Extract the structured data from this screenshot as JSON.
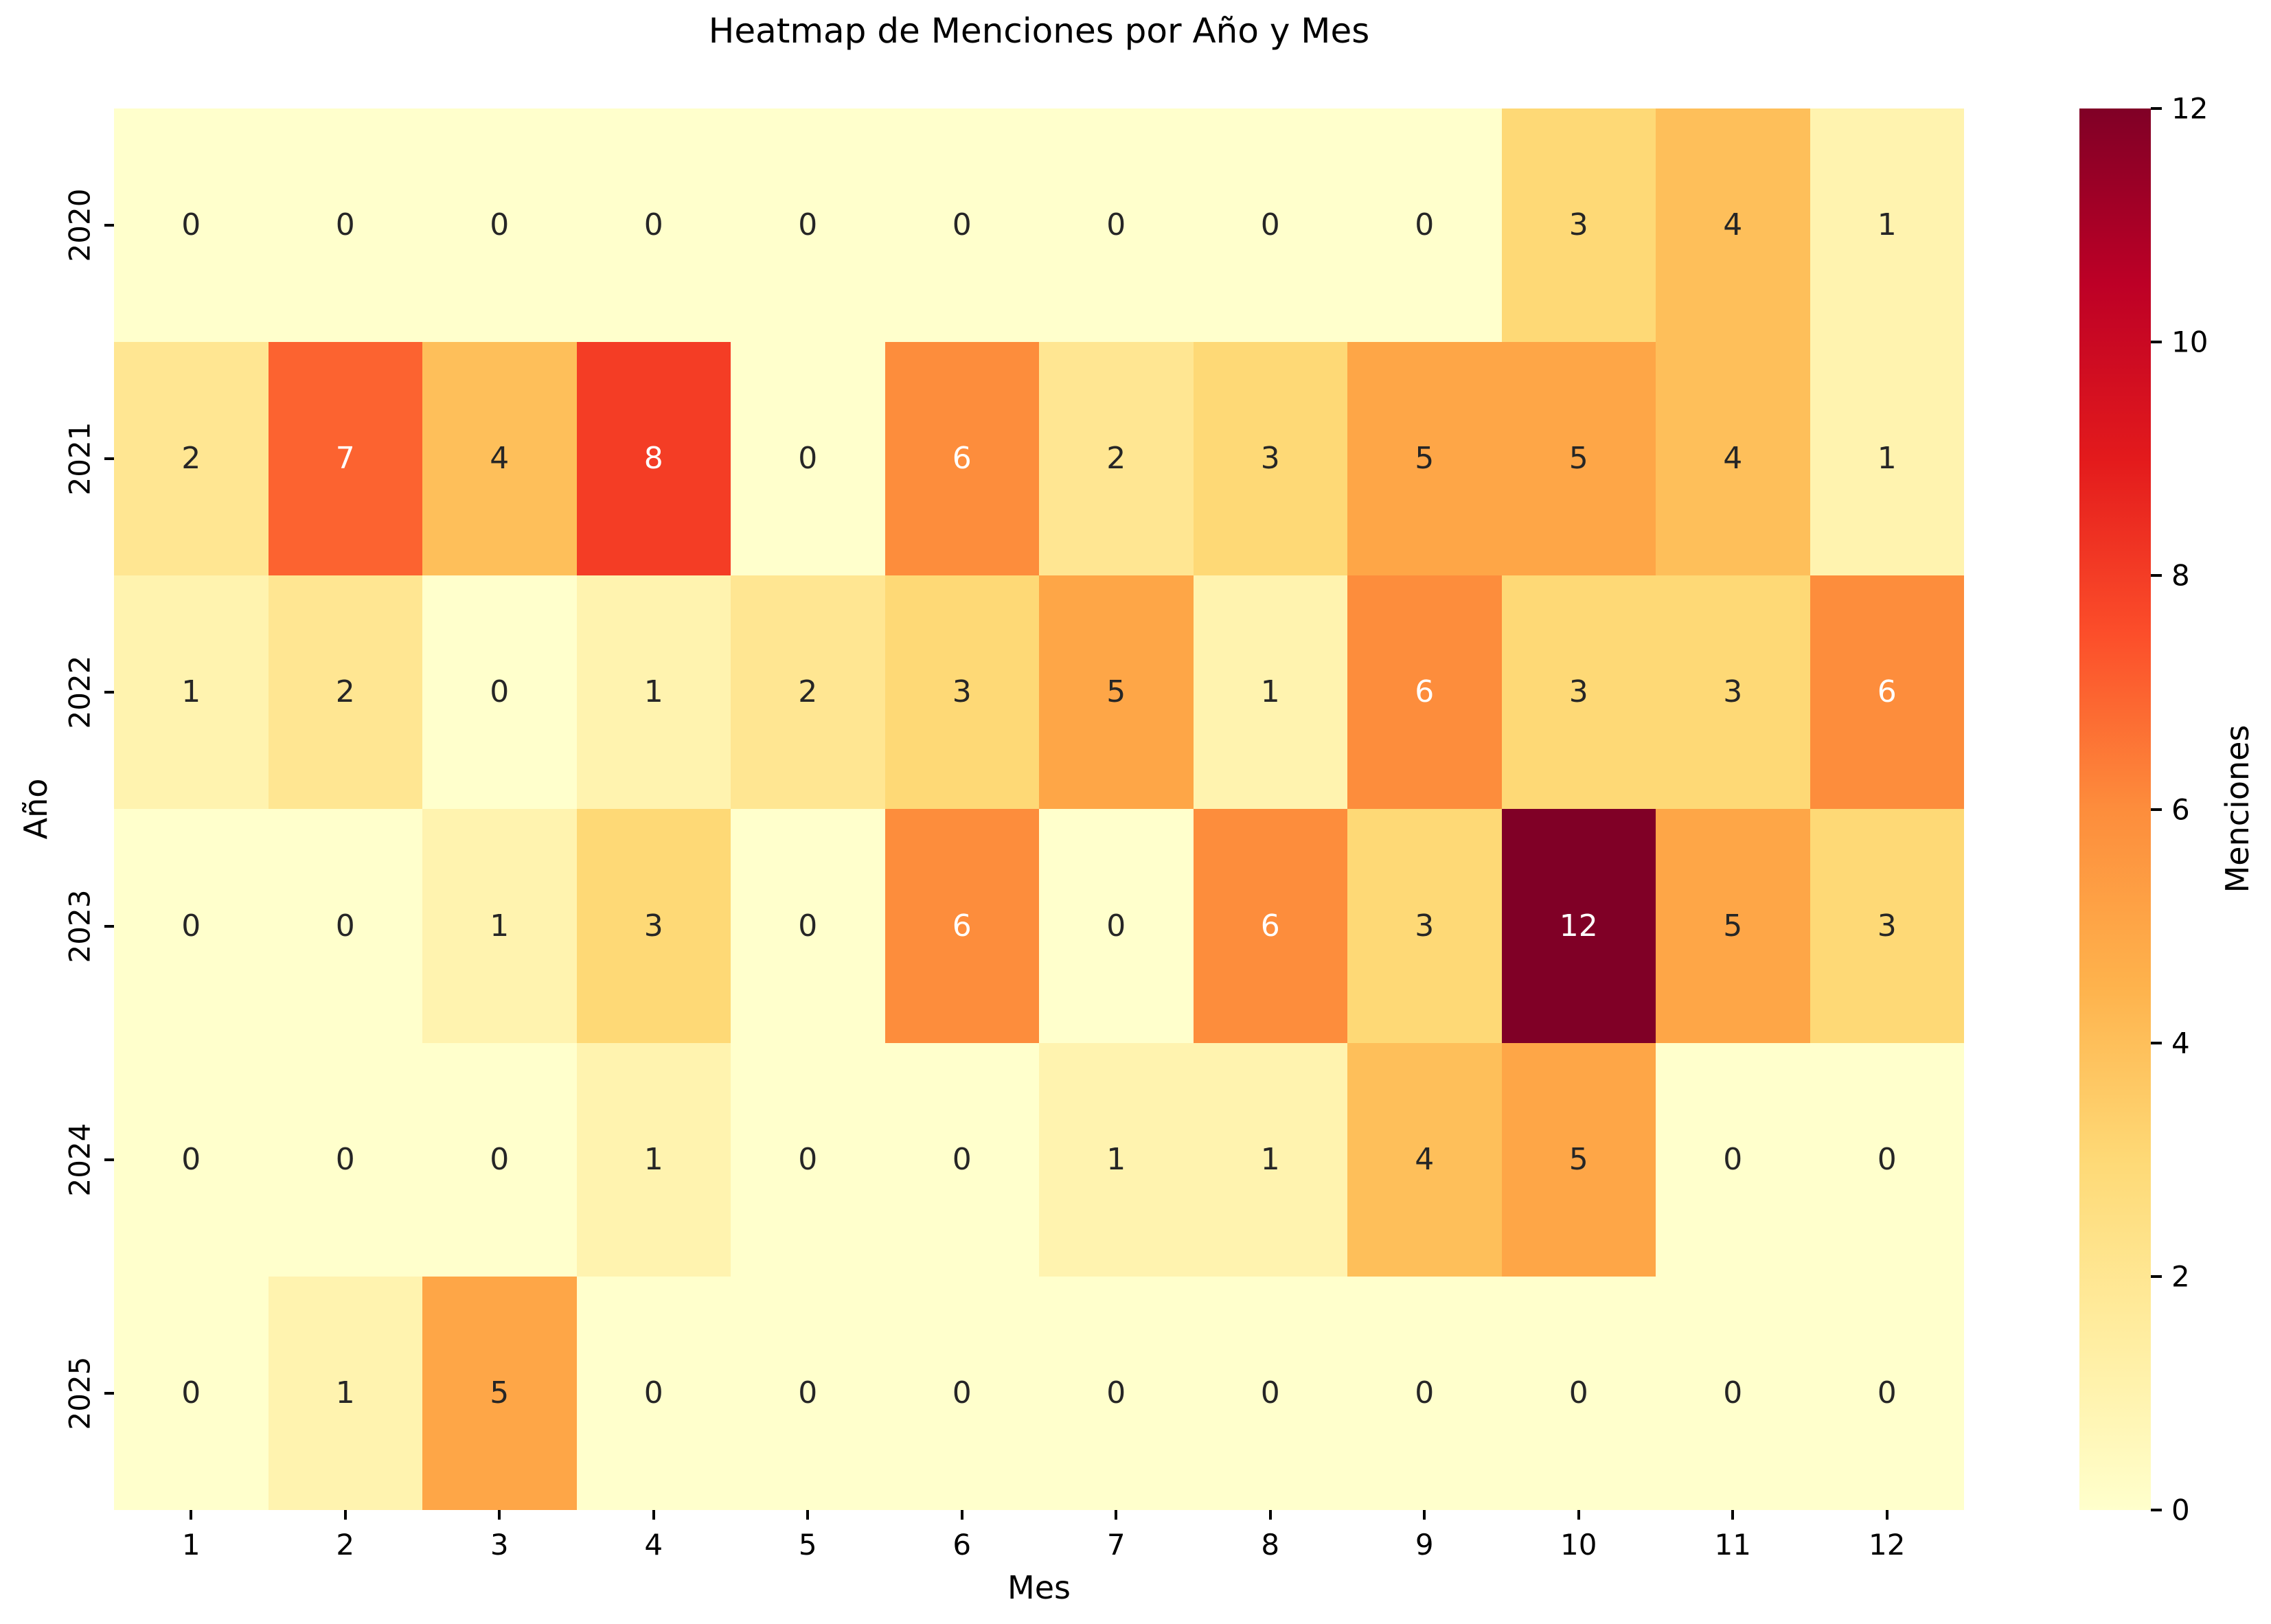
{
  "title": "Heatmap de Menciones por Año y Mes",
  "chart_data": {
    "type": "heatmap",
    "title": "Heatmap de Menciones por Año y Mes",
    "xlabel": "Mes",
    "ylabel": "Año",
    "x_tick_labels": [
      "1",
      "2",
      "3",
      "4",
      "5",
      "6",
      "7",
      "8",
      "9",
      "10",
      "11",
      "12"
    ],
    "y_tick_labels": [
      "2020",
      "2021",
      "2022",
      "2023",
      "2024",
      "2025"
    ],
    "values": [
      [
        0,
        0,
        0,
        0,
        0,
        0,
        0,
        0,
        0,
        3,
        4,
        1
      ],
      [
        2,
        7,
        4,
        8,
        0,
        6,
        2,
        3,
        5,
        5,
        4,
        1
      ],
      [
        1,
        2,
        0,
        1,
        2,
        3,
        5,
        1,
        6,
        3,
        3,
        6
      ],
      [
        0,
        0,
        1,
        3,
        0,
        6,
        0,
        6,
        3,
        12,
        5,
        3
      ],
      [
        0,
        0,
        0,
        1,
        0,
        0,
        1,
        1,
        4,
        5,
        0,
        0
      ],
      [
        0,
        1,
        5,
        0,
        0,
        0,
        0,
        0,
        0,
        0,
        0,
        0
      ]
    ],
    "colorbar": {
      "label": "Menciones",
      "min": 0,
      "max": 12,
      "ticks": [
        "0",
        "2",
        "4",
        "6",
        "8",
        "10",
        "12"
      ],
      "colormap": "YlOrRd",
      "colormap_stops": [
        {
          "pos": 0.0,
          "color": "#ffffcc"
        },
        {
          "pos": 0.125,
          "color": "#ffeda0"
        },
        {
          "pos": 0.25,
          "color": "#fed976"
        },
        {
          "pos": 0.375,
          "color": "#feb24c"
        },
        {
          "pos": 0.5,
          "color": "#fd8d3c"
        },
        {
          "pos": 0.625,
          "color": "#fc4e2a"
        },
        {
          "pos": 0.75,
          "color": "#e31a1c"
        },
        {
          "pos": 0.875,
          "color": "#bd0026"
        },
        {
          "pos": 1.0,
          "color": "#800026"
        }
      ]
    },
    "annotation_text_dark": "#262626",
    "annotation_text_light": "#ffffff",
    "layout_hints": {
      "grid": "off",
      "legend": "colorbar-right",
      "y_tick_rotation": "vertical",
      "value_format": "integer"
    }
  }
}
